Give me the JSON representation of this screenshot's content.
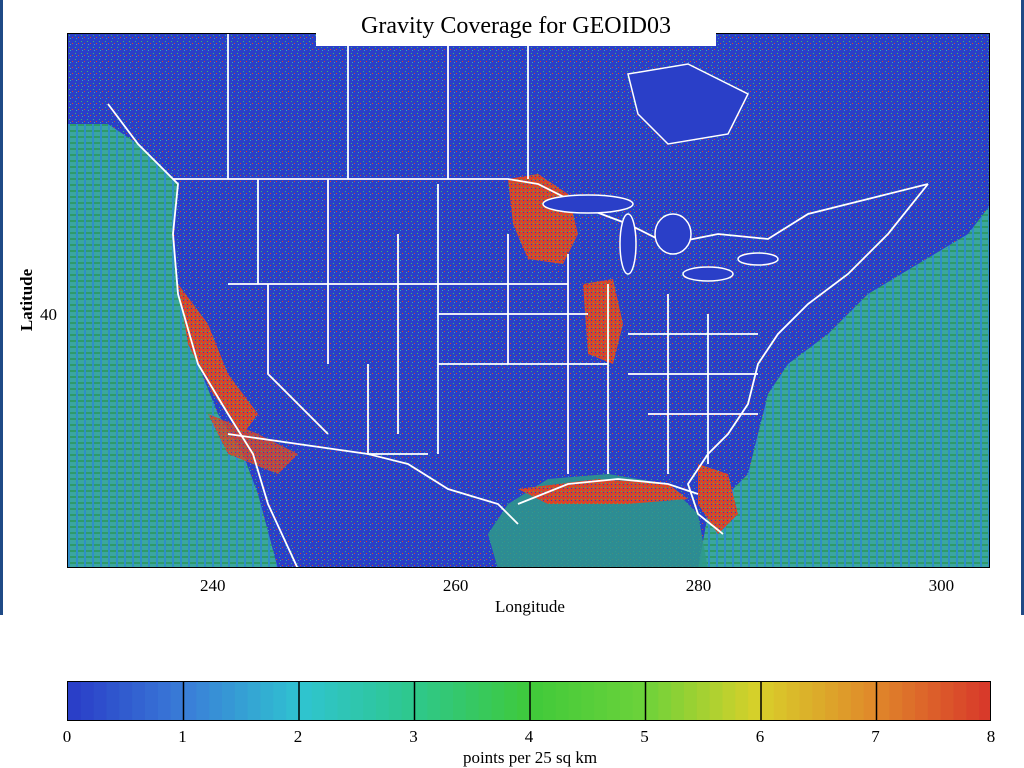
{
  "title": "Gravity Coverage for GEOID03",
  "map": {
    "xlabel": "Longitude",
    "ylabel": "Latitude",
    "xticks": [
      {
        "value": 240,
        "label": "240"
      },
      {
        "value": 260,
        "label": "260"
      },
      {
        "value": 280,
        "label": "280"
      },
      {
        "value": 300,
        "label": "300"
      }
    ],
    "yticks": [
      {
        "value": 40,
        "label": "40"
      }
    ],
    "xlim": [
      228,
      304
    ],
    "background_color": "#2a3fc8",
    "boundary_color": "#ffffff"
  },
  "colorbar": {
    "label": "points per 25 sq km",
    "range": [
      0,
      8
    ],
    "ticks": [
      "0",
      "1",
      "2",
      "3",
      "4",
      "5",
      "6",
      "7",
      "8"
    ],
    "stops": [
      "#2a3fc8",
      "#3a7fd8",
      "#2fc4d0",
      "#2ec88a",
      "#3fc93a",
      "#6cd23a",
      "#d8d02a",
      "#e08a2a",
      "#d83a2a"
    ]
  },
  "regions": {
    "ocean_fill": "#3aa6a0",
    "high_density_color": "#d8452a"
  }
}
